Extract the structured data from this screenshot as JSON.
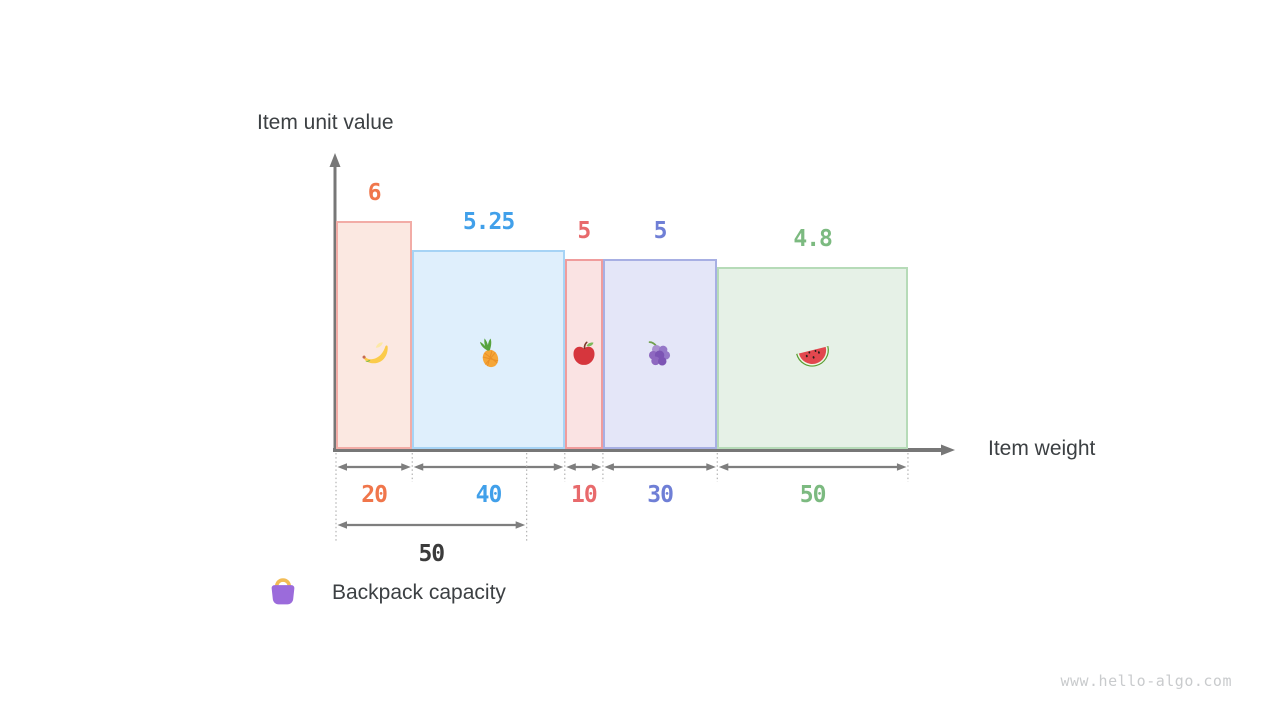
{
  "chart": {
    "y_axis_label": "Item unit value",
    "x_axis_label": "Item weight"
  },
  "chart_data": {
    "type": "bar",
    "title": "",
    "categories": [
      "banana",
      "pineapple",
      "apple",
      "grape",
      "watermelon"
    ],
    "series": [
      {
        "name": "item weight (bar width)",
        "values": [
          20,
          40,
          10,
          30,
          50
        ]
      },
      {
        "name": "item unit value (bar height)",
        "values": [
          6,
          5.25,
          5,
          5,
          4.8
        ]
      }
    ],
    "xlabel": "Item weight",
    "ylabel": "Item unit value",
    "backpack_capacity": 50,
    "x_total_weight": 150,
    "ylim": [
      0,
      6
    ],
    "grid": false,
    "legend_position": "none",
    "annotations": [
      "50 (backpack capacity span)",
      "Backpack capacity"
    ]
  },
  "items": [
    {
      "name": "banana",
      "icon": "banana-icon",
      "weight": 20,
      "unit_value": 6,
      "value_label": "6",
      "weight_label": "20",
      "fill": "#FBE8E1",
      "border": "#F2ACA6",
      "label_color": "#F0764B"
    },
    {
      "name": "pineapple",
      "icon": "pineapple-icon",
      "weight": 40,
      "unit_value": 5.25,
      "value_label": "5.25",
      "weight_label": "40",
      "fill": "#DFEFFC",
      "border": "#A6D3F5",
      "label_color": "#41A0EA"
    },
    {
      "name": "apple",
      "icon": "apple-icon",
      "weight": 10,
      "unit_value": 5,
      "value_label": "5",
      "weight_label": "10",
      "fill": "#FAE3E3",
      "border": "#F09C9C",
      "label_color": "#E86A6C"
    },
    {
      "name": "grape",
      "icon": "grapes-icon",
      "weight": 30,
      "unit_value": 5,
      "value_label": "5",
      "weight_label": "30",
      "fill": "#E4E6F8",
      "border": "#A7AFE3",
      "label_color": "#6F7FD6"
    },
    {
      "name": "watermelon",
      "icon": "watermelon-icon",
      "weight": 50,
      "unit_value": 4.8,
      "value_label": "4.8",
      "weight_label": "50",
      "fill": "#E6F1E7",
      "border": "#B6DBB8",
      "label_color": "#7CBA80"
    }
  ],
  "capacity": {
    "value_label": "50",
    "capacity": 50,
    "legend_label": "Backpack capacity",
    "color": "#3B3B3B",
    "icon": "handbag-icon"
  },
  "watermark": "www.hello-algo.com"
}
